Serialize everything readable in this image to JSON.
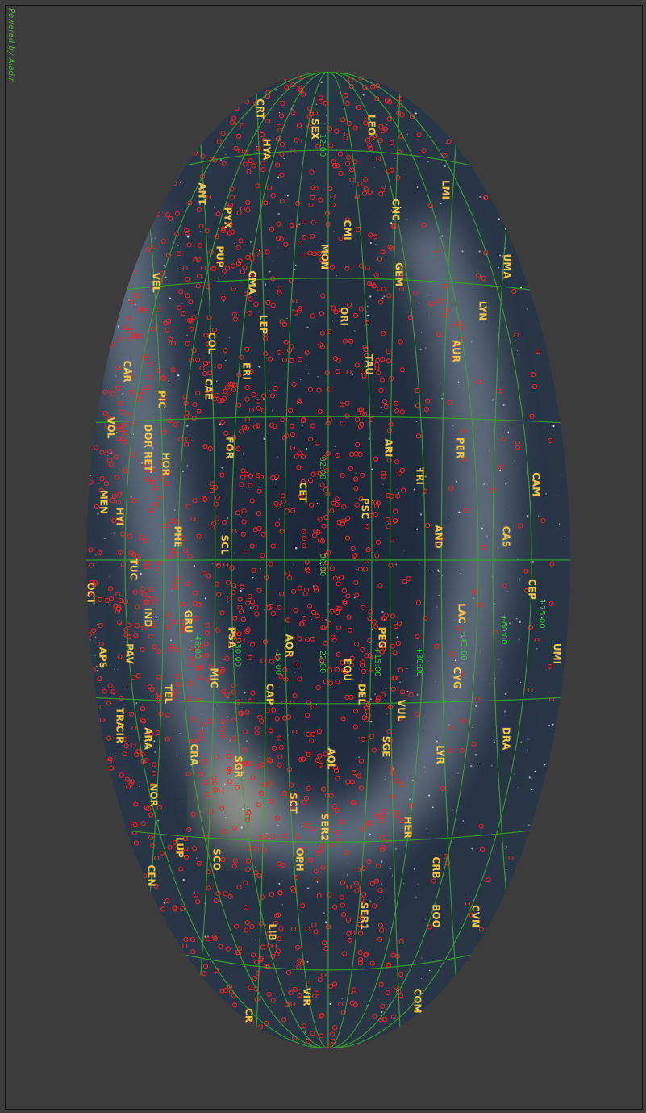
{
  "powered_by": "Powered by Aladin",
  "constellations": [
    "CRT",
    "SEX",
    "LEO",
    "HYA",
    "LMI",
    "ANT",
    "CNC",
    "CMI",
    "PYX",
    "PUP",
    "MON",
    "UMA",
    "VEL",
    "CMA",
    "GEM",
    "ORI",
    "LYN",
    "LEP",
    "COL",
    "AUR",
    "TAU",
    "ERI",
    "CAR",
    "CAE",
    "PIC",
    "FOR",
    "PER",
    "ARI",
    "VOL",
    "DOR RET",
    "HOR",
    "TRI",
    "CET",
    "CAM",
    "MEN",
    "HYI",
    "PSC",
    "CAS",
    "PHE",
    "SCL",
    "AND",
    "TUC",
    "OCT",
    "CEP",
    "LAC",
    "IND",
    "GRU",
    "PSA",
    "PEG",
    "AQR",
    "UMI",
    "APS",
    "PAV",
    "MIC",
    "CYG",
    "EQU",
    "CAP",
    "DEL",
    "TEL",
    "VUL",
    "TRA",
    "ARA",
    "CIR",
    "DRA",
    "SGE",
    "CRA",
    "LYR",
    "AQL",
    "SGR",
    "NOR",
    "SCT",
    "SER2",
    "HER",
    "LUP",
    "SCO",
    "OPH",
    "CRB",
    "CEN",
    "CVN",
    "BOO",
    "SER1",
    "LIB",
    "COM",
    "VIR",
    "CR"
  ],
  "grid_labels": [
    "00:00",
    "02:00",
    "22:00",
    "+15:00",
    "+30:00",
    "+45:00",
    "+60:00",
    "+75:00",
    "-15:00",
    "-30:00",
    "-45:00",
    "12:00"
  ]
}
